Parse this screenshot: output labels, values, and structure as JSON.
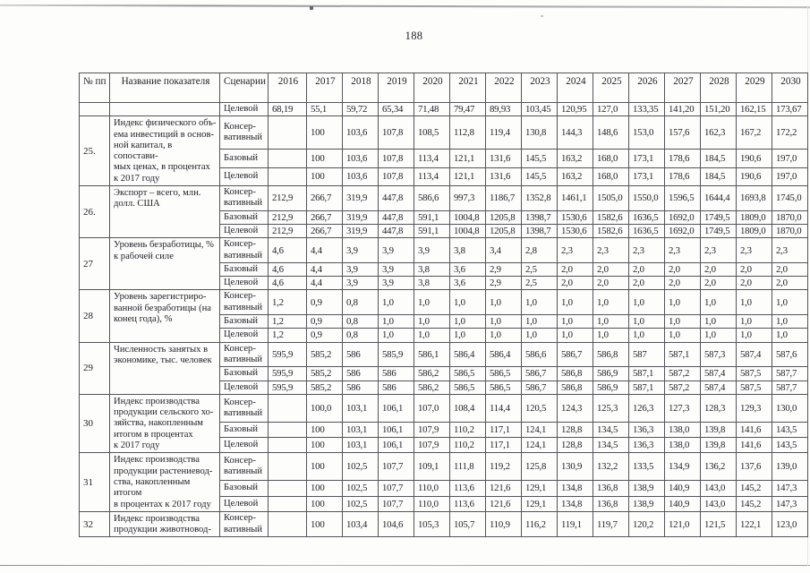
{
  "page": {
    "number": "188"
  },
  "table": {
    "headers": {
      "num": "№ пп",
      "name": "Название показателя",
      "scenario": "Сценарии",
      "years": [
        "2016",
        "2017",
        "2018",
        "2019",
        "2020",
        "2021",
        "2022",
        "2023",
        "2024",
        "2025",
        "2026",
        "2027",
        "2028",
        "2029",
        "2030"
      ]
    },
    "rows": [
      {
        "num": "",
        "name": "",
        "scenarios": [
          {
            "label": "Целевой",
            "values": [
              "68,19",
              "55,1",
              "59,72",
              "65,34",
              "71,48",
              "79,47",
              "89,93",
              "103,45",
              "120,95",
              "127,0",
              "133,35",
              "141,20",
              "151,20",
              "162,15",
              "173,67"
            ]
          }
        ]
      },
      {
        "num": "25.",
        "name": "Индекс физического объ-\nема инвестиций в основ-\nной капитал, в сопостави-\nмых ценах, в процентах\nк 2017 году",
        "scenarios": [
          {
            "label": "Консер-\nвативный",
            "values": [
              "",
              "100",
              "103,6",
              "107,8",
              "108,5",
              "112,8",
              "119,4",
              "130,8",
              "144,3",
              "148,6",
              "153,0",
              "157,6",
              "162,3",
              "167,2",
              "172,2"
            ]
          },
          {
            "label": "Базовый",
            "values": [
              "",
              "100",
              "103,6",
              "107,8",
              "113,4",
              "121,1",
              "131,6",
              "145,5",
              "163,2",
              "168,0",
              "173,1",
              "178,6",
              "184,5",
              "190,6",
              "197,0"
            ]
          },
          {
            "label": "Целевой",
            "values": [
              "",
              "100",
              "103,6",
              "107,8",
              "113,4",
              "121,1",
              "131,6",
              "145,5",
              "163,2",
              "168,0",
              "173,1",
              "178,6",
              "184,5",
              "190,6",
              "197,0"
            ]
          }
        ]
      },
      {
        "num": "26.",
        "name": "Экспорт – всего, млн.\nдолл. США",
        "scenarios": [
          {
            "label": "Консер-\nвативный",
            "values": [
              "212,9",
              "266,7",
              "319,9",
              "447,8",
              "586,6",
              "997,3",
              "1186,7",
              "1352,8",
              "1461,1",
              "1505,0",
              "1550,0",
              "1596,5",
              "1644,4",
              "1693,8",
              "1745,0"
            ]
          },
          {
            "label": "Базовый",
            "values": [
              "212,9",
              "266,7",
              "319,9",
              "447,8",
              "591,1",
              "1004,8",
              "1205,8",
              "1398,7",
              "1530,6",
              "1582,6",
              "1636,5",
              "1692,0",
              "1749,5",
              "1809,0",
              "1870,0"
            ]
          },
          {
            "label": "Целевой",
            "values": [
              "212,9",
              "266,7",
              "319,9",
              "447,8",
              "591,1",
              "1004,8",
              "1205,8",
              "1398,7",
              "1530,6",
              "1582,6",
              "1636,5",
              "1692,0",
              "1749,5",
              "1809,0",
              "1870,0"
            ]
          }
        ]
      },
      {
        "num": "27",
        "name": "Уровень безработицы, %\nк рабочей силе",
        "scenarios": [
          {
            "label": "Консер-\nвативный",
            "values": [
              "4,6",
              "4,4",
              "3,9",
              "3,9",
              "3,9",
              "3,8",
              "3,4",
              "2,8",
              "2,3",
              "2,3",
              "2,3",
              "2,3",
              "2,3",
              "2,3",
              "2,3"
            ]
          },
          {
            "label": "Базовый",
            "values": [
              "4,6",
              "4,4",
              "3,9",
              "3,9",
              "3,8",
              "3,6",
              "2,9",
              "2,5",
              "2,0",
              "2,0",
              "2,0",
              "2,0",
              "2,0",
              "2,0",
              "2,0"
            ]
          },
          {
            "label": "Целевой",
            "values": [
              "4,6",
              "4,4",
              "3,9",
              "3,9",
              "3,8",
              "3,6",
              "2,9",
              "2,5",
              "2,0",
              "2,0",
              "2,0",
              "2,0",
              "2,0",
              "2,0",
              "2,0"
            ]
          }
        ]
      },
      {
        "num": "28",
        "name": "Уровень зарегистриро-\nванной безработицы (на\nконец года), %",
        "scenarios": [
          {
            "label": "Консер-\nвативный",
            "values": [
              "1,2",
              "0,9",
              "0,8",
              "1,0",
              "1,0",
              "1,0",
              "1,0",
              "1,0",
              "1,0",
              "1,0",
              "1,0",
              "1,0",
              "1,0",
              "1,0",
              "1,0"
            ]
          },
          {
            "label": "Базовый",
            "values": [
              "1,2",
              "0,9",
              "0,8",
              "1,0",
              "1,0",
              "1,0",
              "1,0",
              "1,0",
              "1,0",
              "1,0",
              "1,0",
              "1,0",
              "1,0",
              "1,0",
              "1,0"
            ]
          },
          {
            "label": "Целевой",
            "values": [
              "1,2",
              "0,9",
              "0,8",
              "1,0",
              "1,0",
              "1,0",
              "1,0",
              "1,0",
              "1,0",
              "1,0",
              "1,0",
              "1,0",
              "1,0",
              "1,0",
              "1,0"
            ]
          }
        ]
      },
      {
        "num": "29",
        "name": "Численность занятых в\nэкономике, тыс. человек",
        "scenarios": [
          {
            "label": "Консер-\nвативный",
            "values": [
              "595,9",
              "585,2",
              "586",
              "585,9",
              "586,1",
              "586,4",
              "586,4",
              "586,6",
              "586,7",
              "586,8",
              "587",
              "587,1",
              "587,3",
              "587,4",
              "587,6"
            ]
          },
          {
            "label": "Базовый",
            "values": [
              "595,9",
              "585,2",
              "586",
              "586",
              "586,2",
              "586,5",
              "586,5",
              "586,7",
              "586,8",
              "586,9",
              "587,1",
              "587,2",
              "587,4",
              "587,5",
              "587,7"
            ]
          },
          {
            "label": "Целевой",
            "values": [
              "595,9",
              "585,2",
              "586",
              "586",
              "586,2",
              "586,5",
              "586,5",
              "586,7",
              "586,8",
              "586,9",
              "587,1",
              "587,2",
              "587,4",
              "587,5",
              "587,7"
            ]
          }
        ]
      },
      {
        "num": "30",
        "name": "Индекс производства\nпродукции сельского хо-\nзяйства, накопленным\nитогом в процентах\nк 2017 году",
        "scenarios": [
          {
            "label": "Консер-\nвативный",
            "values": [
              "",
              "100,0",
              "103,1",
              "106,1",
              "107,0",
              "108,4",
              "114,4",
              "120,5",
              "124,3",
              "125,3",
              "126,3",
              "127,3",
              "128,3",
              "129,3",
              "130,0"
            ]
          },
          {
            "label": "Базовый",
            "values": [
              "",
              "100",
              "103,1",
              "106,1",
              "107,9",
              "110,2",
              "117,1",
              "124,1",
              "128,8",
              "134,5",
              "136,3",
              "138,0",
              "139,8",
              "141,6",
              "143,5"
            ]
          },
          {
            "label": "Целевой",
            "values": [
              "",
              "100",
              "103,1",
              "106,1",
              "107,9",
              "110,2",
              "117,1",
              "124,1",
              "128,8",
              "134,5",
              "136,3",
              "138,0",
              "139,8",
              "141,6",
              "143,5"
            ]
          }
        ]
      },
      {
        "num": "31",
        "name": "Индекс производства\nпродукции растениевод-\nства, накопленным итогом\nв процентах к 2017 году",
        "scenarios": [
          {
            "label": "Консер-\nвативный",
            "values": [
              "",
              "100",
              "102,5",
              "107,7",
              "109,1",
              "111,8",
              "119,2",
              "125,8",
              "130,9",
              "132,2",
              "133,5",
              "134,9",
              "136,2",
              "137,6",
              "139,0"
            ]
          },
          {
            "label": "Базовый",
            "values": [
              "",
              "100",
              "102,5",
              "107,7",
              "110,0",
              "113,6",
              "121,6",
              "129,1",
              "134,8",
              "136,8",
              "138,9",
              "140,9",
              "143,0",
              "145,2",
              "147,3"
            ]
          },
          {
            "label": "Целевой",
            "values": [
              "",
              "100",
              "102,5",
              "107,7",
              "110,0",
              "113,6",
              "121,6",
              "129,1",
              "134,8",
              "136,8",
              "138,9",
              "140,9",
              "143,0",
              "145,2",
              "147,3"
            ]
          }
        ]
      },
      {
        "num": "32",
        "name": "Индекс производства\nпродукции животновод-",
        "scenarios": [
          {
            "label": "Консер-\nвативный",
            "values": [
              "",
              "100",
              "103,4",
              "104,6",
              "105,3",
              "105,7",
              "110,9",
              "116,2",
              "119,1",
              "119,7",
              "120,2",
              "121,0",
              "121,5",
              "122,1",
              "123,0"
            ]
          }
        ]
      }
    ]
  }
}
